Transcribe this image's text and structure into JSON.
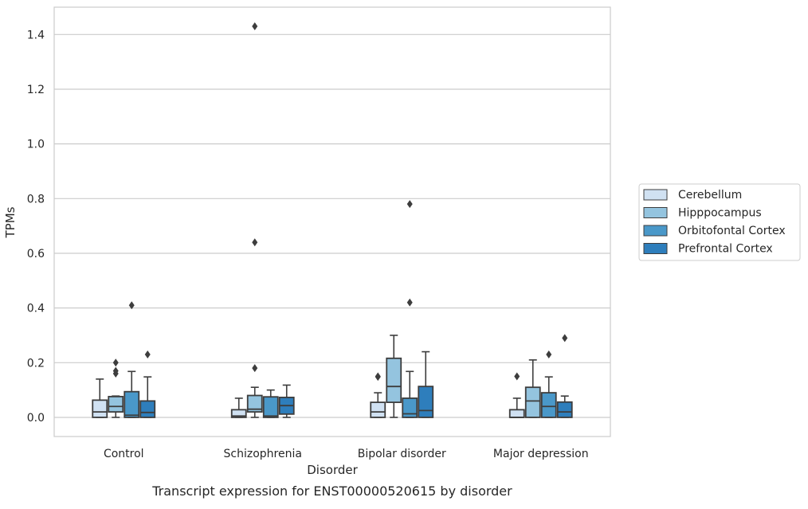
{
  "chart_data": {
    "type": "box",
    "caption": "Transcript expression for ENST00000520615 by disorder",
    "xlabel": "Disorder",
    "ylabel": "TPMs",
    "ylim": [
      -0.07,
      1.5
    ],
    "yticks": [
      0.0,
      0.2,
      0.4,
      0.6,
      0.8,
      1.0,
      1.2,
      1.4
    ],
    "ytick_labels": [
      "0.0",
      "0.2",
      "0.4",
      "0.6",
      "0.8",
      "1.0",
      "1.2",
      "1.4"
    ],
    "grid": "horizontal",
    "legend_position": "right",
    "categories": [
      "Control",
      "Schizophrenia",
      "Bipolar disorder",
      "Major depression"
    ],
    "series": [
      {
        "name": "Cerebellum",
        "color": "#d0e1f2",
        "boxes": [
          {
            "whislo": 0.0,
            "q1": 0.0,
            "med": 0.02,
            "q3": 0.063,
            "whishi": 0.14,
            "fliers": []
          },
          {
            "whislo": 0.0,
            "q1": 0.0,
            "med": 0.005,
            "q3": 0.028,
            "whishi": 0.07,
            "fliers": []
          },
          {
            "whislo": 0.0,
            "q1": 0.0,
            "med": 0.02,
            "q3": 0.055,
            "whishi": 0.09,
            "fliers": [
              0.148,
              0.15
            ]
          },
          {
            "whislo": 0.0,
            "q1": 0.0,
            "med": 0.0,
            "q3": 0.028,
            "whishi": 0.07,
            "fliers": [
              0.15
            ]
          }
        ]
      },
      {
        "name": "Hipppocampus",
        "color": "#94c4df",
        "boxes": [
          {
            "whislo": 0.0,
            "q1": 0.02,
            "med": 0.04,
            "q3": 0.076,
            "whishi": 0.078,
            "fliers": [
              0.16,
              0.17,
              0.2
            ]
          },
          {
            "whislo": 0.0,
            "q1": 0.02,
            "med": 0.03,
            "q3": 0.08,
            "whishi": 0.11,
            "fliers": [
              0.18,
              0.64,
              1.43
            ]
          },
          {
            "whislo": 0.0,
            "q1": 0.055,
            "med": 0.113,
            "q3": 0.216,
            "whishi": 0.3,
            "fliers": []
          },
          {
            "whislo": 0.0,
            "q1": 0.0,
            "med": 0.06,
            "q3": 0.11,
            "whishi": 0.21,
            "fliers": []
          }
        ]
      },
      {
        "name": "Orbitofontal Cortex",
        "color": "#4a98c9",
        "boxes": [
          {
            "whislo": 0.0,
            "q1": 0.0,
            "med": 0.008,
            "q3": 0.094,
            "whishi": 0.168,
            "fliers": [
              0.41
            ]
          },
          {
            "whislo": 0.0,
            "q1": 0.0,
            "med": 0.005,
            "q3": 0.075,
            "whishi": 0.1,
            "fliers": []
          },
          {
            "whislo": 0.0,
            "q1": 0.0,
            "med": 0.013,
            "q3": 0.07,
            "whishi": 0.168,
            "fliers": [
              0.42,
              0.78
            ]
          },
          {
            "whislo": 0.0,
            "q1": 0.0,
            "med": 0.04,
            "q3": 0.09,
            "whishi": 0.148,
            "fliers": [
              0.23
            ]
          }
        ]
      },
      {
        "name": "Prefrontal Cortex",
        "color": "#2e7ebc",
        "boxes": [
          {
            "whislo": 0.0,
            "q1": 0.0,
            "med": 0.018,
            "q3": 0.06,
            "whishi": 0.148,
            "fliers": [
              0.23
            ]
          },
          {
            "whislo": 0.0,
            "q1": 0.012,
            "med": 0.043,
            "q3": 0.073,
            "whishi": 0.118,
            "fliers": []
          },
          {
            "whislo": 0.0,
            "q1": 0.0,
            "med": 0.025,
            "q3": 0.113,
            "whishi": 0.24,
            "fliers": []
          },
          {
            "whislo": 0.0,
            "q1": 0.0,
            "med": 0.02,
            "q3": 0.056,
            "whishi": 0.078,
            "fliers": [
              0.29
            ]
          }
        ]
      }
    ]
  }
}
